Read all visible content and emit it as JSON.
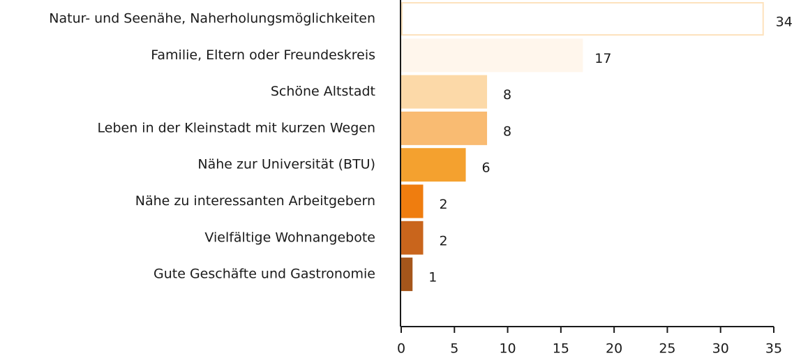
{
  "chart_data": {
    "type": "barh",
    "categories": [
      "Natur- und Seenähe, Naherholungsmöglichkeiten",
      "Familie, Eltern oder Freundeskreis",
      "Schöne Altstadt",
      "Leben in der Kleinstadt mit kurzen Wegen",
      "Nähe zur Universität (BTU)",
      "Nähe zu interessanten Arbeitgebern",
      "Vielfältige Wohnangebote",
      "Gute Geschäfte und Gastronomie"
    ],
    "values": [
      34,
      17,
      8,
      8,
      6,
      2,
      2,
      1
    ],
    "colors": [
      "#ffffff",
      "#fff6ec",
      "#fcd9a8",
      "#f9bb72",
      "#f4a12f",
      "#ef7d0f",
      "#c9651c",
      "#a5561b"
    ],
    "edgecolors": [
      "#fde2bd",
      "#fff6ec",
      "#fcd9a8",
      "#f9bb72",
      "#f4a12f",
      "#ef7d0f",
      "#c9651c",
      "#a5561b"
    ],
    "xlim": [
      0,
      35
    ],
    "xticks": [
      0,
      5,
      10,
      15,
      20,
      25,
      30,
      35
    ],
    "grid": false
  }
}
